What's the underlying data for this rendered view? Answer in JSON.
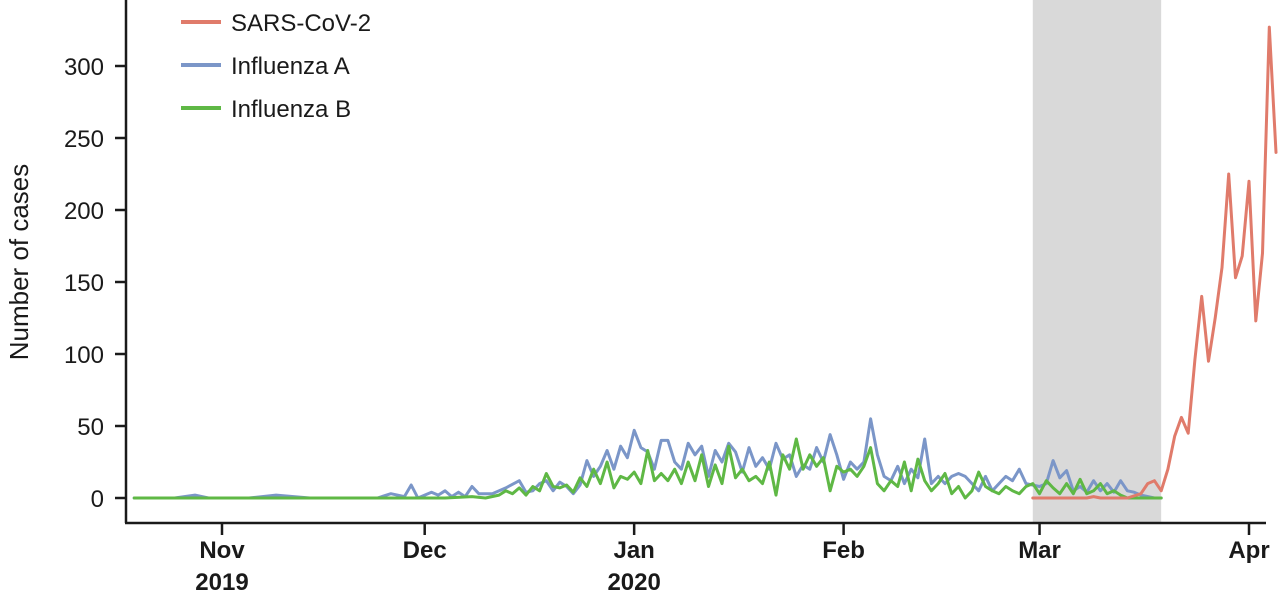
{
  "chart_data": {
    "type": "line",
    "title": "",
    "xlabel": "",
    "ylabel": "Number of cases",
    "xlim": [
      "2019-10-19",
      "2020-04-03"
    ],
    "ylim": [
      0,
      340
    ],
    "y_ticks": [
      0,
      50,
      100,
      150,
      200,
      250,
      300
    ],
    "x_ticks": [
      {
        "date": "2019-11-01",
        "label": "Nov",
        "sublabel": "2019"
      },
      {
        "date": "2019-12-01",
        "label": "Dec",
        "sublabel": ""
      },
      {
        "date": "2020-01-01",
        "label": "Jan",
        "sublabel": "2020"
      },
      {
        "date": "2020-02-01",
        "label": "Feb",
        "sublabel": ""
      },
      {
        "date": "2020-03-01",
        "label": "Mar",
        "sublabel": ""
      },
      {
        "date": "2020-04-01",
        "label": "Apr",
        "sublabel": ""
      }
    ],
    "shaded_region": {
      "from": "2020-02-29",
      "to": "2020-03-19",
      "color": "#d9d9d9"
    },
    "grid": false,
    "legend_position": "top-left",
    "series": [
      {
        "name": "SARS-CoV-2",
        "color": "#e07b6b",
        "points": [
          [
            "2020-02-29",
            0
          ],
          [
            "2020-03-02",
            0
          ],
          [
            "2020-03-04",
            0
          ],
          [
            "2020-03-06",
            0
          ],
          [
            "2020-03-08",
            0
          ],
          [
            "2020-03-09",
            1
          ],
          [
            "2020-03-10",
            0
          ],
          [
            "2020-03-12",
            0
          ],
          [
            "2020-03-14",
            0
          ],
          [
            "2020-03-16",
            3
          ],
          [
            "2020-03-17",
            10
          ],
          [
            "2020-03-18",
            12
          ],
          [
            "2020-03-19",
            5
          ],
          [
            "2020-03-20",
            20
          ],
          [
            "2020-03-21",
            43
          ],
          [
            "2020-03-22",
            56
          ],
          [
            "2020-03-23",
            45
          ],
          [
            "2020-03-24",
            96
          ],
          [
            "2020-03-25",
            140
          ],
          [
            "2020-03-26",
            95
          ],
          [
            "2020-03-27",
            125
          ],
          [
            "2020-03-28",
            160
          ],
          [
            "2020-03-29",
            225
          ],
          [
            "2020-03-30",
            153
          ],
          [
            "2020-03-31",
            168
          ],
          [
            "2020-04-01",
            220
          ],
          [
            "2020-04-02",
            123
          ],
          [
            "2020-04-03",
            170
          ],
          [
            "2020-04-04",
            327
          ],
          [
            "2020-04-05",
            240
          ]
        ]
      },
      {
        "name": "Influenza A",
        "color": "#7b96c8",
        "points": [
          [
            "2019-10-19",
            0
          ],
          [
            "2019-10-25",
            0
          ],
          [
            "2019-10-28",
            2
          ],
          [
            "2019-10-30",
            0
          ],
          [
            "2019-11-05",
            0
          ],
          [
            "2019-11-09",
            2
          ],
          [
            "2019-11-14",
            0
          ],
          [
            "2019-11-24",
            0
          ],
          [
            "2019-11-26",
            3
          ],
          [
            "2019-11-28",
            1
          ],
          [
            "2019-11-29",
            9
          ],
          [
            "2019-11-30",
            0
          ],
          [
            "2019-12-02",
            4
          ],
          [
            "2019-12-03",
            2
          ],
          [
            "2019-12-04",
            5
          ],
          [
            "2019-12-05",
            1
          ],
          [
            "2019-12-06",
            4
          ],
          [
            "2019-12-07",
            1
          ],
          [
            "2019-12-08",
            8
          ],
          [
            "2019-12-09",
            3
          ],
          [
            "2019-12-11",
            3
          ],
          [
            "2019-12-13",
            7
          ],
          [
            "2019-12-15",
            12
          ],
          [
            "2019-12-16",
            4
          ],
          [
            "2019-12-17",
            5
          ],
          [
            "2019-12-18",
            10
          ],
          [
            "2019-12-19",
            12
          ],
          [
            "2019-12-20",
            5
          ],
          [
            "2019-12-21",
            11
          ],
          [
            "2019-12-22",
            8
          ],
          [
            "2019-12-23",
            3
          ],
          [
            "2019-12-24",
            9
          ],
          [
            "2019-12-25",
            26
          ],
          [
            "2019-12-26",
            15
          ],
          [
            "2019-12-27",
            22
          ],
          [
            "2019-12-28",
            33
          ],
          [
            "2019-12-29",
            20
          ],
          [
            "2019-12-30",
            36
          ],
          [
            "2019-12-31",
            28
          ],
          [
            "2020-01-01",
            47
          ],
          [
            "2020-01-02",
            35
          ],
          [
            "2020-01-03",
            32
          ],
          [
            "2020-01-04",
            20
          ],
          [
            "2020-01-05",
            40
          ],
          [
            "2020-01-06",
            40
          ],
          [
            "2020-01-07",
            25
          ],
          [
            "2020-01-08",
            20
          ],
          [
            "2020-01-09",
            38
          ],
          [
            "2020-01-10",
            30
          ],
          [
            "2020-01-11",
            36
          ],
          [
            "2020-01-12",
            15
          ],
          [
            "2020-01-13",
            33
          ],
          [
            "2020-01-14",
            25
          ],
          [
            "2020-01-15",
            38
          ],
          [
            "2020-01-16",
            32
          ],
          [
            "2020-01-17",
            18
          ],
          [
            "2020-01-18",
            35
          ],
          [
            "2020-01-19",
            22
          ],
          [
            "2020-01-20",
            28
          ],
          [
            "2020-01-21",
            20
          ],
          [
            "2020-01-22",
            38
          ],
          [
            "2020-01-23",
            27
          ],
          [
            "2020-01-24",
            30
          ],
          [
            "2020-01-25",
            15
          ],
          [
            "2020-01-26",
            23
          ],
          [
            "2020-01-27",
            20
          ],
          [
            "2020-01-28",
            35
          ],
          [
            "2020-01-29",
            25
          ],
          [
            "2020-01-30",
            44
          ],
          [
            "2020-01-31",
            30
          ],
          [
            "2020-02-01",
            13
          ],
          [
            "2020-02-02",
            25
          ],
          [
            "2020-02-03",
            20
          ],
          [
            "2020-02-04",
            25
          ],
          [
            "2020-02-05",
            55
          ],
          [
            "2020-02-06",
            30
          ],
          [
            "2020-02-07",
            15
          ],
          [
            "2020-02-08",
            12
          ],
          [
            "2020-02-09",
            22
          ],
          [
            "2020-02-10",
            10
          ],
          [
            "2020-02-11",
            20
          ],
          [
            "2020-02-12",
            14
          ],
          [
            "2020-02-13",
            41
          ],
          [
            "2020-02-14",
            10
          ],
          [
            "2020-02-15",
            15
          ],
          [
            "2020-02-16",
            10
          ],
          [
            "2020-02-17",
            15
          ],
          [
            "2020-02-18",
            17
          ],
          [
            "2020-02-19",
            15
          ],
          [
            "2020-02-20",
            10
          ],
          [
            "2020-02-21",
            5
          ],
          [
            "2020-02-22",
            15
          ],
          [
            "2020-02-23",
            5
          ],
          [
            "2020-02-24",
            10
          ],
          [
            "2020-02-25",
            15
          ],
          [
            "2020-02-26",
            12
          ],
          [
            "2020-02-27",
            20
          ],
          [
            "2020-02-28",
            10
          ],
          [
            "2020-03-01",
            8
          ],
          [
            "2020-03-02",
            10
          ],
          [
            "2020-03-03",
            26
          ],
          [
            "2020-03-04",
            14
          ],
          [
            "2020-03-05",
            19
          ],
          [
            "2020-03-06",
            5
          ],
          [
            "2020-03-07",
            8
          ],
          [
            "2020-03-08",
            4
          ],
          [
            "2020-03-09",
            12
          ],
          [
            "2020-03-10",
            5
          ],
          [
            "2020-03-11",
            10
          ],
          [
            "2020-03-12",
            4
          ],
          [
            "2020-03-13",
            12
          ],
          [
            "2020-03-14",
            5
          ],
          [
            "2020-03-15",
            4
          ],
          [
            "2020-03-16",
            2
          ],
          [
            "2020-03-18",
            0
          ],
          [
            "2020-03-19",
            0
          ]
        ]
      },
      {
        "name": "Influenza B",
        "color": "#5fb845",
        "points": [
          [
            "2019-10-19",
            0
          ],
          [
            "2019-12-04",
            0
          ],
          [
            "2019-12-08",
            1
          ],
          [
            "2019-12-10",
            0
          ],
          [
            "2019-12-12",
            2
          ],
          [
            "2019-12-13",
            5
          ],
          [
            "2019-12-14",
            3
          ],
          [
            "2019-12-15",
            7
          ],
          [
            "2019-12-16",
            2
          ],
          [
            "2019-12-17",
            8
          ],
          [
            "2019-12-18",
            5
          ],
          [
            "2019-12-19",
            17
          ],
          [
            "2019-12-20",
            8
          ],
          [
            "2019-12-21",
            7
          ],
          [
            "2019-12-22",
            9
          ],
          [
            "2019-12-23",
            4
          ],
          [
            "2019-12-24",
            14
          ],
          [
            "2019-12-25",
            8
          ],
          [
            "2019-12-26",
            20
          ],
          [
            "2019-12-27",
            10
          ],
          [
            "2019-12-28",
            25
          ],
          [
            "2019-12-29",
            7
          ],
          [
            "2019-12-30",
            15
          ],
          [
            "2019-12-31",
            13
          ],
          [
            "2020-01-01",
            18
          ],
          [
            "2020-01-02",
            10
          ],
          [
            "2020-01-03",
            33
          ],
          [
            "2020-01-04",
            12
          ],
          [
            "2020-01-05",
            17
          ],
          [
            "2020-01-06",
            12
          ],
          [
            "2020-01-07",
            20
          ],
          [
            "2020-01-08",
            10
          ],
          [
            "2020-01-09",
            25
          ],
          [
            "2020-01-10",
            12
          ],
          [
            "2020-01-11",
            30
          ],
          [
            "2020-01-12",
            8
          ],
          [
            "2020-01-13",
            23
          ],
          [
            "2020-01-14",
            10
          ],
          [
            "2020-01-15",
            36
          ],
          [
            "2020-01-16",
            14
          ],
          [
            "2020-01-17",
            20
          ],
          [
            "2020-01-18",
            12
          ],
          [
            "2020-01-19",
            15
          ],
          [
            "2020-01-20",
            10
          ],
          [
            "2020-01-21",
            25
          ],
          [
            "2020-01-22",
            2
          ],
          [
            "2020-01-23",
            30
          ],
          [
            "2020-01-24",
            20
          ],
          [
            "2020-01-25",
            41
          ],
          [
            "2020-01-26",
            20
          ],
          [
            "2020-01-27",
            30
          ],
          [
            "2020-01-28",
            22
          ],
          [
            "2020-01-29",
            28
          ],
          [
            "2020-01-30",
            5
          ],
          [
            "2020-01-31",
            22
          ],
          [
            "2020-02-01",
            18
          ],
          [
            "2020-02-02",
            20
          ],
          [
            "2020-02-03",
            15
          ],
          [
            "2020-02-04",
            22
          ],
          [
            "2020-02-05",
            35
          ],
          [
            "2020-02-06",
            10
          ],
          [
            "2020-02-07",
            5
          ],
          [
            "2020-02-08",
            12
          ],
          [
            "2020-02-09",
            8
          ],
          [
            "2020-02-10",
            25
          ],
          [
            "2020-02-11",
            5
          ],
          [
            "2020-02-12",
            27
          ],
          [
            "2020-02-13",
            12
          ],
          [
            "2020-02-14",
            5
          ],
          [
            "2020-02-15",
            10
          ],
          [
            "2020-02-16",
            17
          ],
          [
            "2020-02-17",
            3
          ],
          [
            "2020-02-18",
            8
          ],
          [
            "2020-02-19",
            0
          ],
          [
            "2020-02-20",
            5
          ],
          [
            "2020-02-21",
            18
          ],
          [
            "2020-02-22",
            8
          ],
          [
            "2020-02-23",
            5
          ],
          [
            "2020-02-24",
            3
          ],
          [
            "2020-02-25",
            8
          ],
          [
            "2020-02-26",
            5
          ],
          [
            "2020-02-27",
            3
          ],
          [
            "2020-02-28",
            8
          ],
          [
            "2020-02-29",
            10
          ],
          [
            "2020-03-01",
            3
          ],
          [
            "2020-03-02",
            12
          ],
          [
            "2020-03-03",
            7
          ],
          [
            "2020-03-04",
            3
          ],
          [
            "2020-03-05",
            10
          ],
          [
            "2020-03-06",
            3
          ],
          [
            "2020-03-07",
            13
          ],
          [
            "2020-03-08",
            3
          ],
          [
            "2020-03-09",
            5
          ],
          [
            "2020-03-10",
            10
          ],
          [
            "2020-03-11",
            3
          ],
          [
            "2020-03-12",
            5
          ],
          [
            "2020-03-13",
            2
          ],
          [
            "2020-03-14",
            0
          ],
          [
            "2020-03-19",
            0
          ]
        ]
      }
    ]
  }
}
